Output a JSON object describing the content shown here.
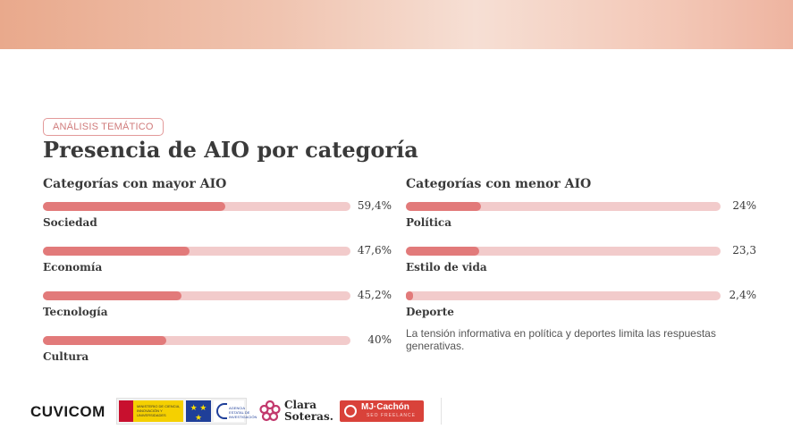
{
  "tag": "ANÁLISIS TEMÁTICO",
  "title": "Presencia de AIO por categoría",
  "note": "La tensión informativa en política y deportes limita las respuestas generativas.",
  "colors": {
    "fill": "#e27a7a",
    "track": "#f2cbcb",
    "accent": "#d9423a"
  },
  "chart_data": [
    {
      "type": "bar",
      "title": "Categorías con mayor AIO",
      "categories": [
        "Sociedad",
        "Economía",
        "Tecnología",
        "Cultura"
      ],
      "values": [
        59.4,
        47.6,
        45.2,
        40
      ],
      "value_labels": [
        "59,4%",
        "47,6%",
        "45,2%",
        "40%"
      ],
      "xlim": [
        0,
        100
      ]
    },
    {
      "type": "bar",
      "title": "Categorías con menor AIO",
      "categories": [
        "Política",
        "Estilo de vida",
        "Deporte"
      ],
      "values": [
        24,
        23.3,
        2.4
      ],
      "value_labels": [
        "24%",
        "23,3",
        "2,4%"
      ],
      "xlim": [
        0,
        100
      ]
    }
  ],
  "logos": {
    "cuvicom": "CUVICOM",
    "ministerio": "MINISTERIO DE CIENCIA, INNOVACIÓN Y UNIVERSIDADES",
    "aei": "AGENCIA ESTATAL DE INVESTIGACIÓN",
    "clara_line1": "Clara",
    "clara_line2": "Soteras.",
    "mj_name": "MJ·Cachón",
    "mj_sub": "SEO FREELANCE"
  }
}
